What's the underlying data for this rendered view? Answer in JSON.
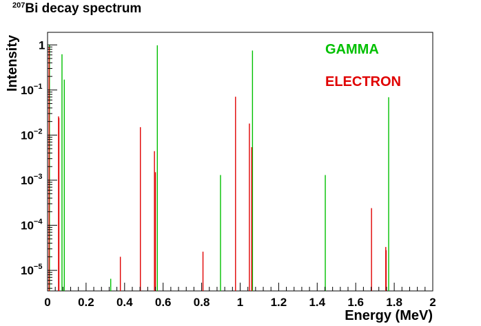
{
  "title": {
    "sup": "207",
    "main": "Bi decay spectrum"
  },
  "xlabel": "Energy (MeV)",
  "ylabel": "Intensity",
  "legend": {
    "gamma": "GAMMA",
    "electron": "ELECTRON"
  },
  "colors": {
    "gamma": "#00c000",
    "electron": "#e00000",
    "axis": "#000000"
  },
  "chart_data": {
    "type": "bar",
    "title": "207Bi decay spectrum",
    "xlabel": "Energy (MeV)",
    "ylabel": "Intensity",
    "xlim": [
      0,
      2
    ],
    "ylim": [
      3.5e-06,
      1.9
    ],
    "yscale": "log",
    "grid": false,
    "legend_placement": "top-right",
    "xticks": [
      "0",
      "0.2",
      "0.4",
      "0.6",
      "0.8",
      "1",
      "1.2",
      "1.4",
      "1.6",
      "1.8",
      "2"
    ],
    "yticks": [
      {
        "value": 1e-05,
        "base": "10",
        "exp": "−5"
      },
      {
        "value": 0.0001,
        "base": "10",
        "exp": "−4"
      },
      {
        "value": 0.001,
        "base": "10",
        "exp": "−3"
      },
      {
        "value": 0.01,
        "base": "10",
        "exp": "−2"
      },
      {
        "value": 0.1,
        "base": "10",
        "exp": "−1"
      },
      {
        "value": 1,
        "base": "1",
        "exp": ""
      }
    ],
    "series": [
      {
        "name": "GAMMA",
        "x": [
          0.01,
          0.075,
          0.087,
          0.328,
          0.57,
          0.898,
          1.064,
          1.442,
          1.771
        ],
        "values": [
          1.0,
          0.62,
          0.17,
          6.5e-06,
          0.98,
          0.0013,
          0.75,
          0.0013,
          0.069
        ]
      },
      {
        "name": "ELECTRON",
        "x": [
          0.008,
          0.057,
          0.059,
          0.378,
          0.482,
          0.555,
          0.56,
          0.807,
          0.976,
          1.048,
          1.06,
          1.682,
          1.756,
          1.758
        ],
        "values": [
          0.9,
          0.026,
          0.024,
          2e-05,
          0.015,
          0.0044,
          0.0015,
          2.6e-05,
          0.071,
          0.018,
          0.0054,
          0.00024,
          3.3e-05,
          2.8e-05
        ]
      }
    ]
  }
}
